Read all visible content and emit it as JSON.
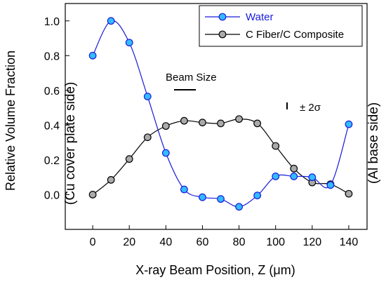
{
  "chart_data": {
    "type": "line",
    "xlabel_prefix": "X-ray Beam Position, Z (",
    "xlabel_unit_mu": "μ",
    "xlabel_suffix": "m)",
    "ylabel": "Relative Volume Fraction",
    "xlim": [
      -15,
      150
    ],
    "ylim": [
      -0.2,
      1.1
    ],
    "xticks": [
      0,
      20,
      40,
      60,
      80,
      100,
      120,
      140
    ],
    "yticks": [
      0.0,
      0.2,
      0.4,
      0.6,
      0.8,
      1.0
    ],
    "xtick_labels": [
      "0",
      "20",
      "40",
      "60",
      "80",
      "100",
      "120",
      "140"
    ],
    "ytick_labels": [
      "0.0",
      "0.2",
      "0.4",
      "0.6",
      "0.8",
      "1.0"
    ],
    "left_side_label": "(Cu cover plate side)",
    "right_side_label": "(Al base side)",
    "beam_size_label": "Beam Size",
    "error_label": "± 2σ",
    "legend_position": "top-right",
    "series": [
      {
        "name": "Water",
        "color": "#1a1adc",
        "marker_fill": "#33bbff",
        "x": [
          0,
          10,
          20,
          30,
          40,
          50,
          60,
          70,
          80,
          90,
          100,
          110,
          120,
          130,
          140
        ],
        "y": [
          0.8,
          1.0,
          0.875,
          0.565,
          0.24,
          0.03,
          -0.015,
          -0.025,
          -0.07,
          -0.005,
          0.105,
          0.105,
          0.1,
          0.055,
          0.405
        ]
      },
      {
        "name": "C Fiber/C Composite",
        "color": "#000000",
        "marker_fill": "#aaaaaa",
        "x": [
          0,
          10,
          20,
          30,
          40,
          50,
          60,
          70,
          80,
          90,
          100,
          110,
          120,
          130,
          140
        ],
        "y": [
          0.0,
          0.085,
          0.205,
          0.33,
          0.395,
          0.425,
          0.415,
          0.41,
          0.435,
          0.41,
          0.28,
          0.15,
          0.07,
          0.06,
          0.005
        ]
      }
    ]
  }
}
